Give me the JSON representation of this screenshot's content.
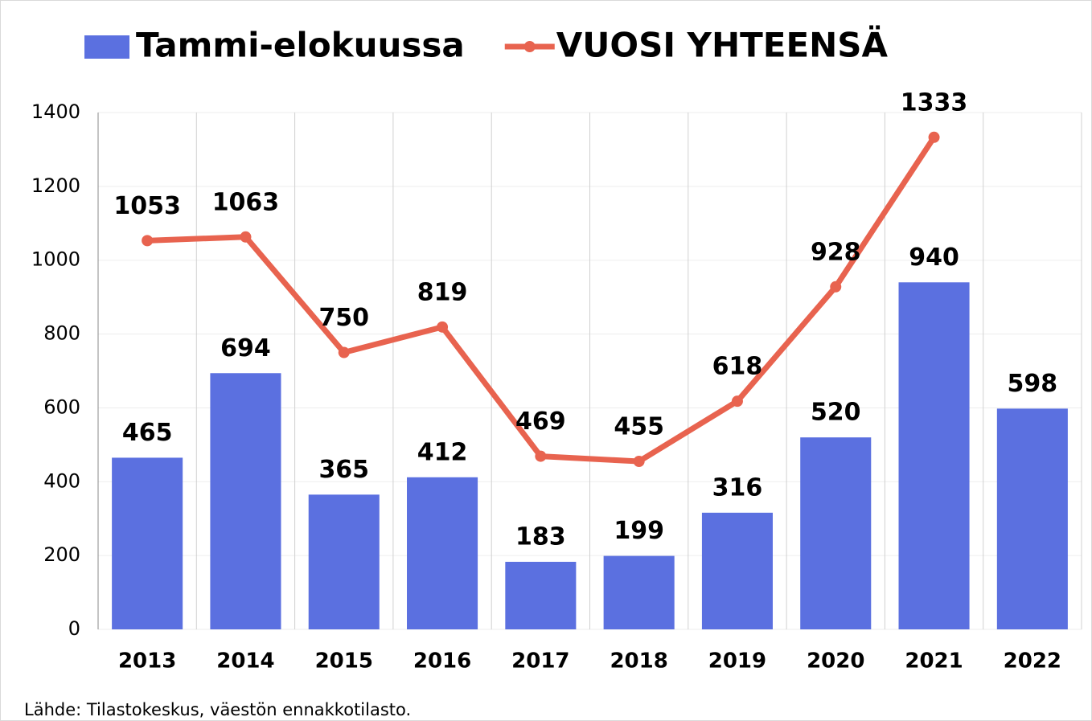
{
  "chart_data": {
    "type": "bar",
    "categories": [
      "2013",
      "2014",
      "2015",
      "2016",
      "2017",
      "2018",
      "2019",
      "2020",
      "2021",
      "2022"
    ],
    "series": [
      {
        "name": "Tammi-elokuussa",
        "type": "bar",
        "color": "#5b70e0",
        "values": [
          465,
          694,
          365,
          412,
          183,
          199,
          316,
          520,
          940,
          598
        ]
      },
      {
        "name": "VUOSI YHTEENSÄ",
        "type": "line",
        "color": "#e8634f",
        "values": [
          1053,
          1063,
          750,
          819,
          469,
          455,
          618,
          928,
          1333,
          null
        ]
      }
    ],
    "ylim": [
      0,
      1400
    ],
    "yticks": [
      0,
      200,
      400,
      600,
      800,
      1000,
      1200,
      1400
    ],
    "grid": true,
    "source": "Lähde: Tilastokeskus, väestön ennakkotilasto."
  }
}
